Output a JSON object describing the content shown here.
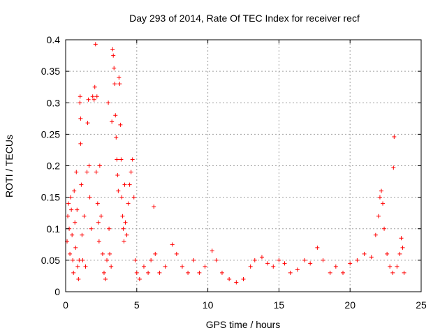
{
  "chart_data": {
    "type": "scatter",
    "title": "Day 293 of 2014, Rate Of TEC Index for receiver recf",
    "xlabel": "GPS time / hours",
    "ylabel": "ROTI / TECUs",
    "xlim": [
      0,
      25
    ],
    "ylim": [
      0,
      0.4
    ],
    "xticks": [
      0,
      5,
      10,
      15,
      20,
      25
    ],
    "xtick_labels": [
      "0",
      "5",
      "10",
      "15",
      "20",
      "25"
    ],
    "yticks": [
      0,
      0.05,
      0.1,
      0.15,
      0.2,
      0.25,
      0.3,
      0.35,
      0.4
    ],
    "ytick_labels": [
      "0",
      "0.05",
      "0.1",
      "0.15",
      "0.2",
      "0.25",
      "0.3",
      "0.35",
      "0.4"
    ],
    "grid": true,
    "marker": "plus",
    "color": "#ff0000",
    "series": [
      {
        "name": "ROTI",
        "points": [
          [
            0.1,
            0.08
          ],
          [
            0.15,
            0.12
          ],
          [
            0.2,
            0.14
          ],
          [
            0.25,
            0.1
          ],
          [
            0.3,
            0.06
          ],
          [
            0.35,
            0.15
          ],
          [
            0.4,
            0.13
          ],
          [
            0.45,
            0.09
          ],
          [
            0.5,
            0.05
          ],
          [
            0.55,
            0.03
          ],
          [
            0.6,
            0.16
          ],
          [
            0.65,
            0.11
          ],
          [
            0.7,
            0.07
          ],
          [
            0.75,
            0.19
          ],
          [
            0.8,
            0.13
          ],
          [
            0.85,
            0.04
          ],
          [
            0.9,
            0.02
          ],
          [
            0.95,
            0.05
          ],
          [
            1.0,
            0.3
          ],
          [
            1.02,
            0.31
          ],
          [
            1.05,
            0.235
          ],
          [
            1.05,
            0.275
          ],
          [
            1.1,
            0.17
          ],
          [
            1.15,
            0.09
          ],
          [
            1.2,
            0.05
          ],
          [
            1.3,
            0.12
          ],
          [
            1.4,
            0.04
          ],
          [
            1.5,
            0.19
          ],
          [
            1.55,
            0.268
          ],
          [
            1.6,
            0.305
          ],
          [
            1.65,
            0.2
          ],
          [
            1.7,
            0.15
          ],
          [
            1.8,
            0.1
          ],
          [
            1.9,
            0.31
          ],
          [
            2.0,
            0.305
          ],
          [
            2.05,
            0.325
          ],
          [
            2.1,
            0.393
          ],
          [
            2.15,
            0.19
          ],
          [
            2.2,
            0.31
          ],
          [
            2.25,
            0.14
          ],
          [
            2.3,
            0.11
          ],
          [
            2.35,
            0.08
          ],
          [
            2.4,
            0.2
          ],
          [
            2.5,
            0.12
          ],
          [
            2.6,
            0.06
          ],
          [
            2.7,
            0.03
          ],
          [
            2.8,
            0.02
          ],
          [
            2.9,
            0.05
          ],
          [
            3.0,
            0.3
          ],
          [
            3.05,
            0.1
          ],
          [
            3.1,
            0.06
          ],
          [
            3.2,
            0.04
          ],
          [
            3.25,
            0.27
          ],
          [
            3.3,
            0.385
          ],
          [
            3.35,
            0.375
          ],
          [
            3.4,
            0.355
          ],
          [
            3.45,
            0.33
          ],
          [
            3.5,
            0.28
          ],
          [
            3.55,
            0.245
          ],
          [
            3.6,
            0.21
          ],
          [
            3.65,
            0.185
          ],
          [
            3.7,
            0.16
          ],
          [
            3.75,
            0.34
          ],
          [
            3.8,
            0.33
          ],
          [
            3.85,
            0.265
          ],
          [
            3.9,
            0.21
          ],
          [
            3.95,
            0.15
          ],
          [
            4.0,
            0.12
          ],
          [
            4.05,
            0.1
          ],
          [
            4.1,
            0.08
          ],
          [
            4.15,
            0.17
          ],
          [
            4.2,
            0.11
          ],
          [
            4.3,
            0.09
          ],
          [
            4.4,
            0.14
          ],
          [
            4.5,
            0.17
          ],
          [
            4.6,
            0.19
          ],
          [
            4.7,
            0.21
          ],
          [
            4.8,
            0.15
          ],
          [
            4.9,
            0.05
          ],
          [
            5.0,
            0.03
          ],
          [
            5.2,
            0.02
          ],
          [
            5.5,
            0.04
          ],
          [
            5.8,
            0.03
          ],
          [
            6.0,
            0.05
          ],
          [
            6.2,
            0.135
          ],
          [
            6.3,
            0.06
          ],
          [
            6.6,
            0.03
          ],
          [
            7.0,
            0.04
          ],
          [
            7.5,
            0.075
          ],
          [
            7.8,
            0.06
          ],
          [
            8.2,
            0.04
          ],
          [
            8.6,
            0.03
          ],
          [
            9.0,
            0.05
          ],
          [
            9.4,
            0.03
          ],
          [
            9.8,
            0.04
          ],
          [
            10.3,
            0.065
          ],
          [
            10.6,
            0.05
          ],
          [
            11.0,
            0.03
          ],
          [
            11.5,
            0.02
          ],
          [
            12.0,
            0.015
          ],
          [
            12.5,
            0.02
          ],
          [
            13.0,
            0.04
          ],
          [
            13.3,
            0.05
          ],
          [
            13.8,
            0.055
          ],
          [
            14.2,
            0.045
          ],
          [
            14.6,
            0.04
          ],
          [
            15.0,
            0.05
          ],
          [
            15.4,
            0.045
          ],
          [
            15.8,
            0.03
          ],
          [
            16.3,
            0.035
          ],
          [
            16.8,
            0.05
          ],
          [
            17.2,
            0.045
          ],
          [
            17.7,
            0.07
          ],
          [
            18.1,
            0.05
          ],
          [
            18.6,
            0.03
          ],
          [
            19.0,
            0.04
          ],
          [
            19.5,
            0.03
          ],
          [
            20.0,
            0.045
          ],
          [
            20.5,
            0.05
          ],
          [
            21.0,
            0.06
          ],
          [
            21.5,
            0.055
          ],
          [
            21.8,
            0.09
          ],
          [
            22.0,
            0.12
          ],
          [
            22.1,
            0.15
          ],
          [
            22.2,
            0.16
          ],
          [
            22.3,
            0.14
          ],
          [
            22.4,
            0.1
          ],
          [
            22.6,
            0.06
          ],
          [
            22.8,
            0.04
          ],
          [
            23.0,
            0.03
          ],
          [
            23.05,
            0.197
          ],
          [
            23.1,
            0.246
          ],
          [
            23.3,
            0.04
          ],
          [
            23.5,
            0.06
          ],
          [
            23.6,
            0.085
          ],
          [
            23.7,
            0.07
          ],
          [
            23.8,
            0.03
          ]
        ]
      }
    ]
  }
}
